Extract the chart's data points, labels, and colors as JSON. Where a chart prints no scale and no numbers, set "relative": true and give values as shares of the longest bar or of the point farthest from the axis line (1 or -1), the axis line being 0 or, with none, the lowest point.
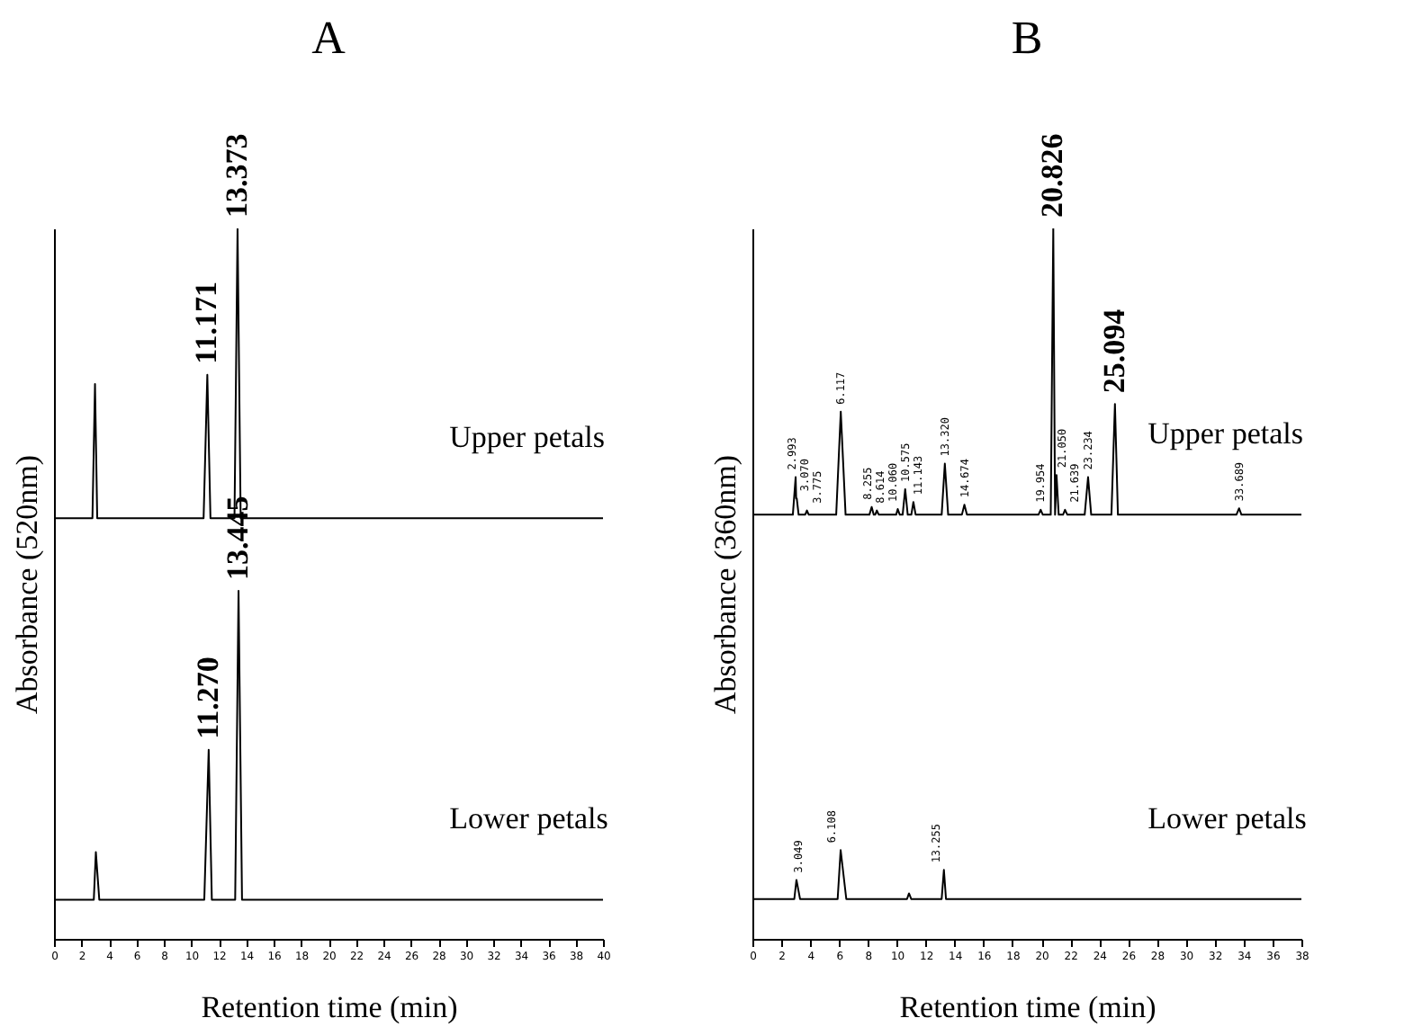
{
  "chart_data": [
    {
      "type": "line",
      "title": "A",
      "xlabel": "Retention time (min)",
      "ylabel": "Absorbance (520nm)",
      "relative": true,
      "xlim": [
        0,
        40
      ],
      "xticks": [
        0,
        2,
        4,
        6,
        8,
        10,
        12,
        14,
        16,
        18,
        20,
        22,
        24,
        26,
        28,
        30,
        32,
        34,
        36,
        38,
        40
      ],
      "series": [
        {
          "name": "Upper petals",
          "color": "#000000",
          "x": [
            0,
            2.8,
            2.987,
            3.15,
            10.9,
            11.171,
            11.4,
            13.15,
            13.373,
            13.6,
            14,
            40
          ],
          "values": [
            0.592,
            0.592,
            0.781,
            0.592,
            0.592,
            0.794,
            0.592,
            0.592,
            1.0,
            0.592,
            0.592,
            0.592
          ]
        },
        {
          "name": "Lower petals",
          "color": "#000000",
          "x": [
            0,
            2.9,
            3.05,
            3.3,
            10.95,
            11.27,
            11.5,
            13.2,
            13.445,
            13.7,
            14,
            40
          ],
          "values": [
            0.055,
            0.055,
            0.122,
            0.055,
            0.055,
            0.266,
            0.055,
            0.055,
            0.49,
            0.055,
            0.055,
            0.055
          ]
        }
      ],
      "annotations": [
        {
          "text": "11.171",
          "x": 11.171,
          "y": 0.794
        },
        {
          "text": "13.373",
          "x": 13.373,
          "y": 1.0
        },
        {
          "text": "11.270",
          "x": 11.27,
          "y": 0.266
        },
        {
          "text": "13.445",
          "x": 13.445,
          "y": 0.49
        }
      ]
    },
    {
      "type": "line",
      "title": "B",
      "xlabel": "Retention time (min)",
      "ylabel": "Absorbance (360nm)",
      "relative": true,
      "xlim": [
        0,
        38
      ],
      "xticks": [
        0,
        2,
        4,
        6,
        8,
        10,
        12,
        14,
        16,
        18,
        20,
        22,
        24,
        26,
        28,
        30,
        32,
        34,
        36,
        38
      ],
      "series": [
        {
          "name": "Upper petals",
          "color": "#000000",
          "x": [
            0,
            2.8,
            2.993,
            3.03,
            3.07,
            3.2,
            3.65,
            3.775,
            3.9,
            5.8,
            6.117,
            6.45,
            8.1,
            8.255,
            8.4,
            8.5,
            8.614,
            8.75,
            9.95,
            10.06,
            10.2,
            10.4,
            10.575,
            10.75,
            11.0,
            11.143,
            11.3,
            13.1,
            13.32,
            13.55,
            14.5,
            14.674,
            14.85,
            19.8,
            19.954,
            20.1,
            20.65,
            20.826,
            20.95,
            21.05,
            21.2,
            21.5,
            21.639,
            21.8,
            23.0,
            23.234,
            23.45,
            24.85,
            25.094,
            25.3,
            33.5,
            33.689,
            33.85,
            38
          ],
          "values": [
            0.597,
            0.597,
            0.65,
            0.62,
            0.62,
            0.597,
            0.597,
            0.603,
            0.597,
            0.597,
            0.742,
            0.597,
            0.597,
            0.608,
            0.597,
            0.597,
            0.603,
            0.597,
            0.597,
            0.605,
            0.597,
            0.597,
            0.633,
            0.597,
            0.597,
            0.615,
            0.597,
            0.597,
            0.669,
            0.597,
            0.597,
            0.611,
            0.597,
            0.597,
            0.604,
            0.597,
            0.597,
            1.0,
            0.597,
            0.653,
            0.597,
            0.597,
            0.604,
            0.597,
            0.597,
            0.65,
            0.597,
            0.597,
            0.753,
            0.597,
            0.597,
            0.606,
            0.597,
            0.597
          ]
        },
        {
          "name": "Lower petals",
          "color": "#000000",
          "x": [
            0,
            2.9,
            3.049,
            3.3,
            5.9,
            6.108,
            6.5,
            10.7,
            10.839,
            11.0,
            13.1,
            13.255,
            13.4,
            38
          ],
          "values": [
            0.056,
            0.056,
            0.083,
            0.056,
            0.056,
            0.125,
            0.056,
            0.056,
            0.064,
            0.056,
            0.056,
            0.097,
            0.056,
            0.056
          ]
        }
      ],
      "annotations": [
        {
          "text": "20.826",
          "x": 20.826,
          "y": 1.0
        },
        {
          "text": "25.094",
          "x": 25.094,
          "y": 0.753
        },
        {
          "text": "2.993",
          "x": 2.993,
          "y": 0.65
        },
        {
          "text": "3.070",
          "x": 3.07,
          "y": 0.62
        },
        {
          "text": "3.775",
          "x": 3.775,
          "y": 0.603
        },
        {
          "text": "6.117",
          "x": 6.117,
          "y": 0.742
        },
        {
          "text": "8.255",
          "x": 8.255,
          "y": 0.608
        },
        {
          "text": "8.614",
          "x": 8.614,
          "y": 0.603
        },
        {
          "text": "10.060",
          "x": 10.06,
          "y": 0.605
        },
        {
          "text": "10.575",
          "x": 10.575,
          "y": 0.633
        },
        {
          "text": "11.143",
          "x": 11.143,
          "y": 0.615
        },
        {
          "text": "13.320",
          "x": 13.32,
          "y": 0.669
        },
        {
          "text": "14.674",
          "x": 14.674,
          "y": 0.611
        },
        {
          "text": "19.954",
          "x": 19.954,
          "y": 0.604
        },
        {
          "text": "21.050",
          "x": 21.05,
          "y": 0.653
        },
        {
          "text": "21.639",
          "x": 21.639,
          "y": 0.604
        },
        {
          "text": "23.234",
          "x": 23.234,
          "y": 0.65
        },
        {
          "text": "33.689",
          "x": 33.689,
          "y": 0.606
        },
        {
          "text": "3.049",
          "x": 3.049,
          "y": 0.083
        },
        {
          "text": "6.108",
          "x": 6.108,
          "y": 0.125
        },
        {
          "text": "13.255",
          "x": 13.255,
          "y": 0.097
        }
      ]
    }
  ]
}
